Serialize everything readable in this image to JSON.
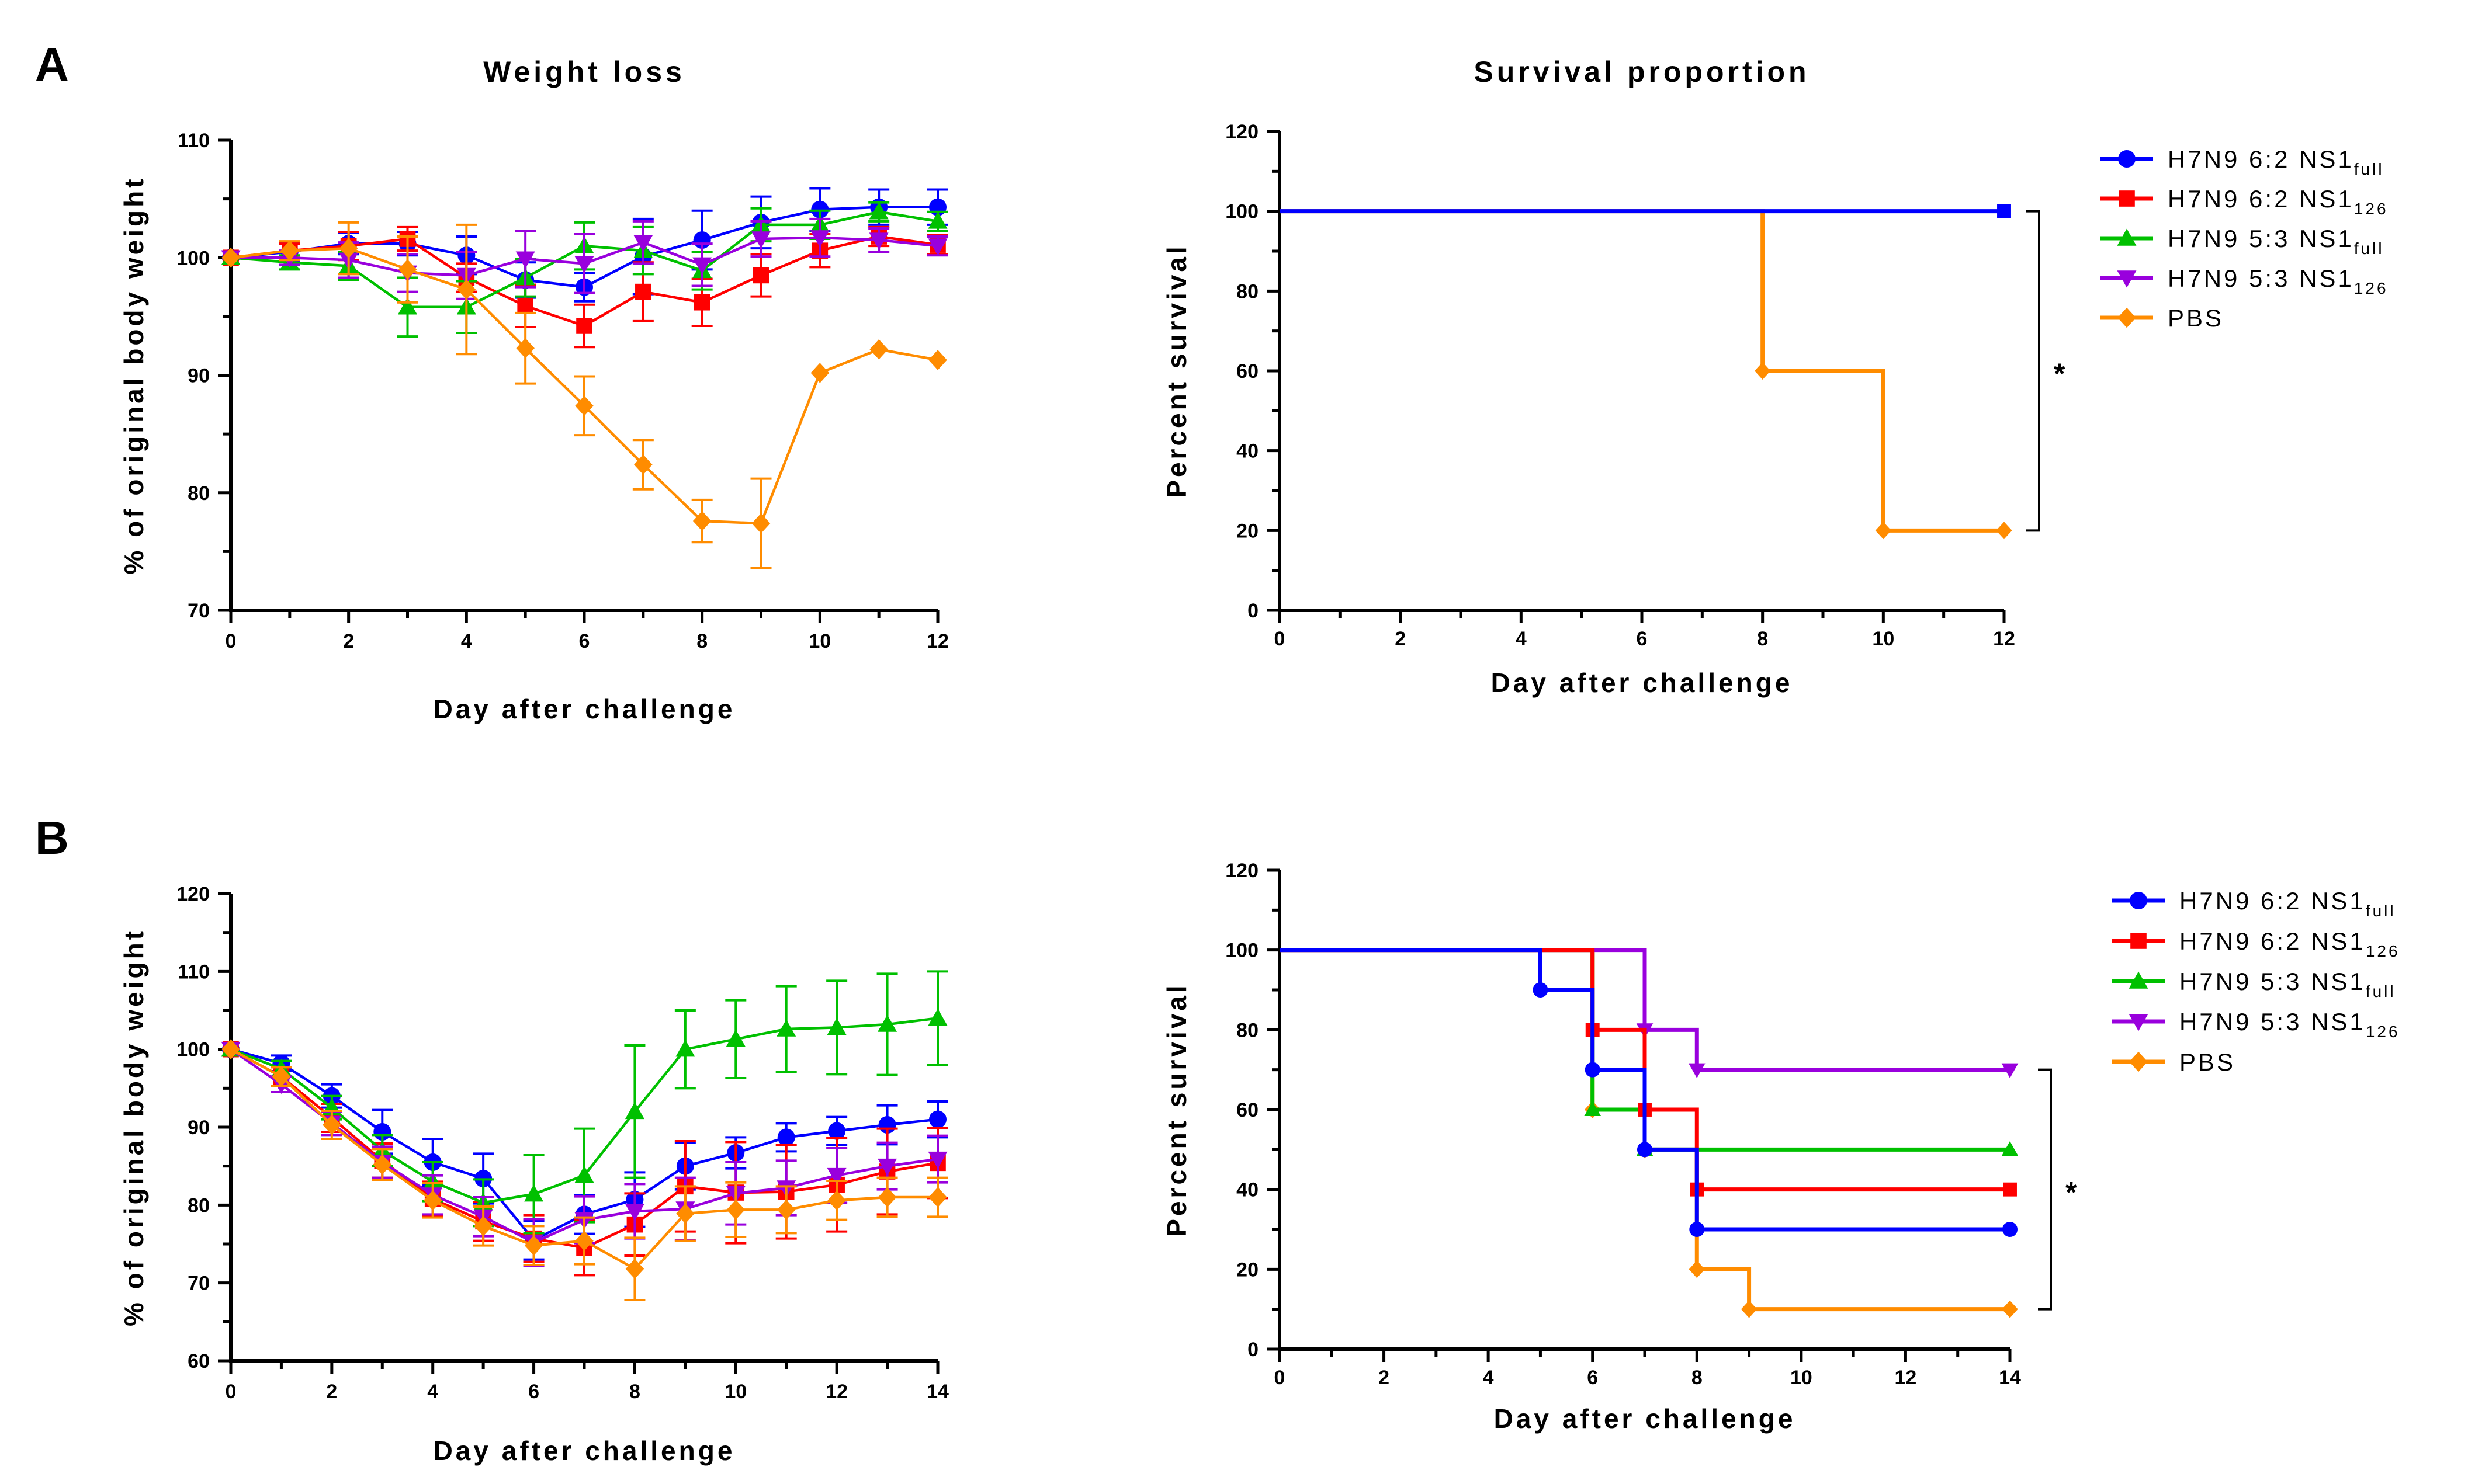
{
  "panels": [
    {
      "letter": "A"
    },
    {
      "letter": "B"
    }
  ],
  "chart_data": [
    {
      "type": "line",
      "panel": "A",
      "title": "Weight loss",
      "xlabel": "Day after challenge",
      "ylabel": "% of original body weight",
      "xlim": [
        0,
        12
      ],
      "ylim": [
        70,
        110
      ],
      "xticks": [
        0,
        2,
        4,
        6,
        8,
        10,
        12
      ],
      "yticks": [
        70,
        80,
        90,
        100,
        110
      ],
      "x": [
        0,
        1,
        2,
        3,
        4,
        5,
        6,
        7,
        8,
        9,
        10,
        11,
        12
      ],
      "series": [
        {
          "name": "H7N9 6:2 NS1full",
          "color": "#0000ff",
          "marker": "circle",
          "values": [
            100,
            100.5,
            101.2,
            101.2,
            100.2,
            98.1,
            97.5,
            100.1,
            101.5,
            103,
            104.1,
            104.3,
            104.3
          ],
          "errors": [
            0,
            0.8,
            0.9,
            1,
            1.6,
            1.5,
            1.2,
            3.2,
            2.5,
            2.2,
            1.8,
            1.5,
            1.5
          ]
        },
        {
          "name": "H7N9 6:2 NS1126",
          "color": "#ff0000",
          "marker": "square",
          "values": [
            100,
            100.6,
            101,
            101.6,
            98.3,
            95.9,
            94.2,
            97.1,
            96.2,
            98.5,
            100.6,
            101.8,
            101.1
          ],
          "errors": [
            0,
            0.6,
            1.2,
            1,
            1.2,
            1.8,
            1.8,
            2.5,
            2,
            1.8,
            1.4,
            0.8,
            0.8
          ]
        },
        {
          "name": "H7N9 5:3 NS1full",
          "color": "#00c000",
          "marker": "triangle-up",
          "values": [
            100,
            99.6,
            99.3,
            95.8,
            95.8,
            98.3,
            101,
            100.6,
            98.9,
            102.8,
            102.8,
            103.9,
            103.1
          ],
          "errors": [
            0,
            0.6,
            1.2,
            2.5,
            2.2,
            1.6,
            2,
            2,
            1.6,
            1.4,
            1.2,
            0.8,
            0.8
          ]
        },
        {
          "name": "H7N9 5:3 NS1126",
          "color": "#9900dd",
          "marker": "triangle-down",
          "values": [
            100,
            100,
            99.8,
            98.7,
            98.5,
            99.9,
            99.5,
            101.3,
            99.4,
            101.6,
            101.7,
            101.5,
            101
          ],
          "errors": [
            0,
            0.6,
            1.5,
            1.6,
            2,
            2.4,
            2.5,
            1.8,
            1.8,
            1.5,
            1.6,
            1,
            0.8
          ]
        },
        {
          "name": "PBS",
          "color": "#ff8c00",
          "marker": "diamond",
          "values": [
            100,
            100.6,
            100.8,
            99,
            97.3,
            92.3,
            87.4,
            82.4,
            77.6,
            77.4,
            90.2,
            92.2,
            91.3
          ],
          "errors": [
            0,
            0.8,
            2.2,
            2.8,
            5.5,
            3,
            2.5,
            2.1,
            1.8,
            3.8,
            0,
            0,
            0
          ]
        }
      ]
    },
    {
      "type": "line",
      "subtype": "step",
      "panel": "A",
      "title": "Survival proportion",
      "xlabel": "Day after challenge",
      "ylabel": "Percent survival",
      "xlim": [
        0,
        12
      ],
      "ylim": [
        0,
        120
      ],
      "xticks": [
        0,
        2,
        4,
        6,
        8,
        10,
        12
      ],
      "yticks": [
        0,
        20,
        40,
        60,
        80,
        100,
        120
      ],
      "significance": "*",
      "series": [
        {
          "name": "PBS",
          "color": "#ff8c00",
          "marker": "diamond",
          "steps": [
            [
              0,
              100
            ],
            [
              8,
              60
            ],
            [
              10,
              20
            ],
            [
              12,
              20
            ]
          ]
        },
        {
          "name": "H7N9 6:2 NS1full",
          "color": "#0000ff",
          "marker": "square",
          "steps": [
            [
              0,
              100
            ],
            [
              12,
              100
            ]
          ]
        }
      ],
      "legend": [
        {
          "color": "#0000ff",
          "marker": "circle",
          "base": "H7N9 6:2 NS1",
          "sub": "full"
        },
        {
          "color": "#ff0000",
          "marker": "square",
          "base": "H7N9 6:2 NS1",
          "sub": "126"
        },
        {
          "color": "#00c000",
          "marker": "triangle-up",
          "base": "H7N9 5:3 NS1",
          "sub": "full"
        },
        {
          "color": "#9900dd",
          "marker": "triangle-down",
          "base": "H7N9 5:3 NS1",
          "sub": "126"
        },
        {
          "color": "#ff8c00",
          "marker": "diamond",
          "base": "PBS",
          "sub": ""
        }
      ]
    },
    {
      "type": "line",
      "panel": "B",
      "title": "",
      "xlabel": "Day after challenge",
      "ylabel": "% of original body weight",
      "xlim": [
        0,
        14
      ],
      "ylim": [
        60,
        120
      ],
      "xticks": [
        0,
        2,
        4,
        6,
        8,
        10,
        12,
        14
      ],
      "yticks": [
        60,
        70,
        80,
        90,
        100,
        110,
        120
      ],
      "x": [
        0,
        1,
        2,
        3,
        4,
        5,
        6,
        7,
        8,
        9,
        10,
        11,
        12,
        13,
        14
      ],
      "series": [
        {
          "name": "H7N9 6:2 NS1full",
          "color": "#0000ff",
          "marker": "circle",
          "values": [
            100,
            98.2,
            94,
            89.4,
            85.5,
            83.4,
            75.5,
            78.8,
            80.7,
            85,
            86.7,
            88.7,
            89.5,
            90.3,
            91
          ],
          "errors": [
            0,
            1,
            1.5,
            2.8,
            3,
            3.2,
            2.5,
            2.5,
            3.5,
            3,
            2,
            1.8,
            1.8,
            2.5,
            2.3
          ]
        },
        {
          "name": "H7N9 6:2 NS1126",
          "color": "#ff0000",
          "marker": "square",
          "values": [
            100,
            96.5,
            91.2,
            85.7,
            80.8,
            77.9,
            75.7,
            74.5,
            77.5,
            82.4,
            81.6,
            81.7,
            82.6,
            84.3,
            85.4
          ],
          "errors": [
            0,
            1.2,
            1.8,
            2.2,
            2.2,
            2.5,
            3,
            3.5,
            4,
            5.8,
            6.5,
            6,
            6,
            5.5,
            4.5
          ]
        },
        {
          "name": "H7N9 5:3 NS1full",
          "color": "#00c000",
          "marker": "triangle-up",
          "values": [
            100,
            97.5,
            92.5,
            87,
            83,
            80.3,
            81.4,
            83.8,
            92,
            100,
            101.3,
            102.6,
            102.8,
            103.2,
            104
          ],
          "errors": [
            0,
            1,
            1.5,
            2,
            2.5,
            3,
            5,
            6,
            8.5,
            5,
            5,
            5.5,
            6,
            6.5,
            6
          ]
        },
        {
          "name": "H7N9 5:3 NS1126",
          "color": "#9900dd",
          "marker": "triangle-down",
          "values": [
            100,
            95.5,
            90.5,
            85.5,
            81.3,
            78.5,
            75.2,
            78.1,
            79.2,
            79.5,
            81.5,
            82.2,
            83.8,
            85,
            85.9
          ],
          "errors": [
            0,
            1,
            1.5,
            2,
            2.5,
            2.5,
            3,
            3,
            3.5,
            4,
            4,
            3.5,
            3.5,
            3,
            3
          ]
        },
        {
          "name": "PBS",
          "color": "#ff8c00",
          "marker": "diamond",
          "values": [
            100,
            96.5,
            90.3,
            85.2,
            80.6,
            77.3,
            74.8,
            75.4,
            71.8,
            78.9,
            79.4,
            79.4,
            80.6,
            81,
            81
          ],
          "errors": [
            0,
            1.2,
            1.8,
            2,
            2.2,
            2.5,
            2.5,
            3,
            4,
            3.5,
            3.5,
            3,
            2.5,
            2.5,
            2.5
          ]
        }
      ]
    },
    {
      "type": "line",
      "subtype": "step",
      "panel": "B",
      "title": "",
      "xlabel": "Day after challenge",
      "ylabel": "Percent survival",
      "xlim": [
        0,
        14
      ],
      "ylim": [
        0,
        120
      ],
      "xticks": [
        0,
        2,
        4,
        6,
        8,
        10,
        12,
        14
      ],
      "yticks": [
        0,
        20,
        40,
        60,
        80,
        100,
        120
      ],
      "significance": "*",
      "series": [
        {
          "name": "PBS",
          "color": "#ff8c00",
          "marker": "diamond",
          "steps": [
            [
              0,
              100
            ],
            [
              6,
              60
            ],
            [
              7,
              50
            ],
            [
              8,
              20
            ],
            [
              9,
              10
            ],
            [
              14,
              10
            ]
          ]
        },
        {
          "name": "H7N9 5:3 NS1full",
          "color": "#00c000",
          "marker": "triangle-up",
          "steps": [
            [
              0,
              100
            ],
            [
              6,
              60
            ],
            [
              7,
              50
            ],
            [
              14,
              50
            ]
          ]
        },
        {
          "name": "H7N9 5:3 NS1126",
          "color": "#9900dd",
          "marker": "triangle-down",
          "steps": [
            [
              0,
              100
            ],
            [
              7,
              80
            ],
            [
              8,
              70
            ],
            [
              14,
              70
            ]
          ]
        },
        {
          "name": "H7N9 6:2 NS1126",
          "color": "#ff0000",
          "marker": "square",
          "steps": [
            [
              0,
              100
            ],
            [
              6,
              80
            ],
            [
              7,
              60
            ],
            [
              8,
              40
            ],
            [
              14,
              40
            ]
          ]
        },
        {
          "name": "H7N9 6:2 NS1full",
          "color": "#0000ff",
          "marker": "circle",
          "steps": [
            [
              0,
              100
            ],
            [
              5,
              90
            ],
            [
              6,
              70
            ],
            [
              7,
              50
            ],
            [
              8,
              30
            ],
            [
              14,
              30
            ]
          ]
        }
      ],
      "legend": [
        {
          "color": "#0000ff",
          "marker": "circle",
          "base": "H7N9 6:2 NS1",
          "sub": "full"
        },
        {
          "color": "#ff0000",
          "marker": "square",
          "base": "H7N9 6:2 NS1",
          "sub": "126"
        },
        {
          "color": "#00c000",
          "marker": "triangle-up",
          "base": "H7N9 5:3 NS1",
          "sub": "full"
        },
        {
          "color": "#9900dd",
          "marker": "triangle-down",
          "base": "H7N9 5:3 NS1",
          "sub": "126"
        },
        {
          "color": "#ff8c00",
          "marker": "diamond",
          "base": "PBS",
          "sub": ""
        }
      ]
    }
  ]
}
